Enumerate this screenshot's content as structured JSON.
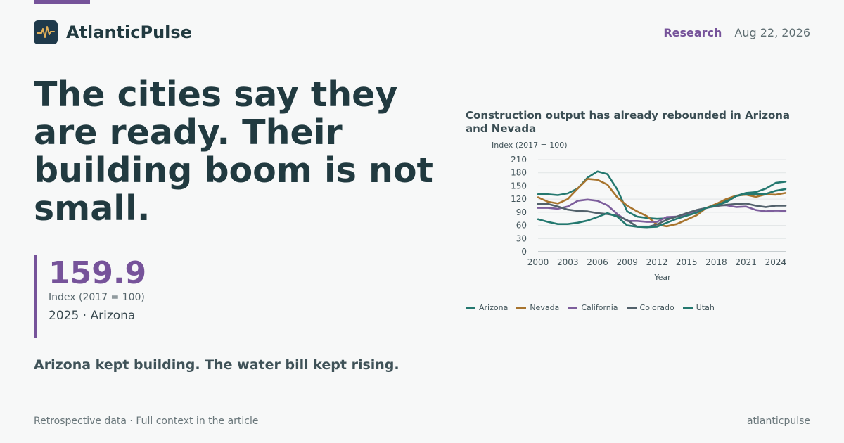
{
  "brand": {
    "name": "AtlanticPulse",
    "logo_icon": "pulse-icon"
  },
  "header": {
    "section": "Research",
    "date": "Aug 22, 2026"
  },
  "headline": "The cities say they are ready. Their building boom is not small.",
  "stat": {
    "value": "159.9",
    "unit": "Index (2017 = 100)",
    "context": "2025 · Arizona"
  },
  "deck": "Arizona kept building. The water bill kept rising.",
  "footer": {
    "left": "Retrospective data · Full context in the article",
    "right": "atlanticpulse"
  },
  "colors": {
    "accent": "#76539a",
    "ink": "#213a40",
    "logo_bg": "#1f3a4b",
    "logo_pulse": "#e2b15a"
  },
  "chart_data": {
    "type": "line",
    "title": "Construction output has already rebounded in Arizona and Nevada",
    "ylabel": "Index (2017 = 100)",
    "xlabel": "Year",
    "x": [
      2000,
      2001,
      2002,
      2003,
      2004,
      2005,
      2006,
      2007,
      2008,
      2009,
      2010,
      2011,
      2012,
      2013,
      2014,
      2015,
      2016,
      2017,
      2018,
      2019,
      2020,
      2021,
      2022,
      2023,
      2024,
      2025
    ],
    "ylim": [
      0,
      210
    ],
    "yticks": [
      0,
      30,
      60,
      90,
      120,
      150,
      180,
      210
    ],
    "xticks": [
      2000,
      2003,
      2006,
      2009,
      2012,
      2015,
      2018,
      2021,
      2024
    ],
    "grid": true,
    "legend_position": "bottom",
    "series": [
      {
        "name": "Arizona",
        "color": "#24786f",
        "values": [
          131,
          131,
          129,
          133,
          144,
          169,
          183,
          177,
          142,
          92,
          80,
          77,
          75,
          76,
          80,
          86,
          92,
          100,
          107,
          117,
          127,
          134,
          136,
          144,
          157,
          159.9
        ]
      },
      {
        "name": "Nevada",
        "color": "#a8742e",
        "values": [
          124,
          114,
          110,
          120,
          144,
          166,
          164,
          153,
          124,
          105,
          92,
          81,
          62,
          58,
          63,
          73,
          83,
          100,
          109,
          120,
          128,
          130,
          125,
          131,
          130,
          134
        ]
      },
      {
        "name": "California",
        "color": "#7d5e9c",
        "values": [
          100,
          100,
          98,
          103,
          116,
          119,
          116,
          106,
          86,
          70,
          70,
          68,
          68,
          79,
          80,
          86,
          92,
          100,
          106,
          106,
          102,
          103,
          95,
          92,
          94,
          93
        ]
      },
      {
        "name": "Colorado",
        "color": "#52616b",
        "values": [
          109,
          109,
          103,
          96,
          93,
          92,
          88,
          86,
          82,
          72,
          57,
          56,
          62,
          73,
          80,
          88,
          95,
          100,
          104,
          107,
          109,
          110,
          105,
          102,
          105,
          105
        ]
      },
      {
        "name": "Utah",
        "color": "#24786f",
        "values": [
          74,
          68,
          63,
          63,
          66,
          71,
          79,
          88,
          80,
          60,
          57,
          56,
          57,
          66,
          75,
          82,
          89,
          100,
          106,
          113,
          127,
          132,
          132,
          132,
          139,
          143
        ]
      }
    ]
  }
}
